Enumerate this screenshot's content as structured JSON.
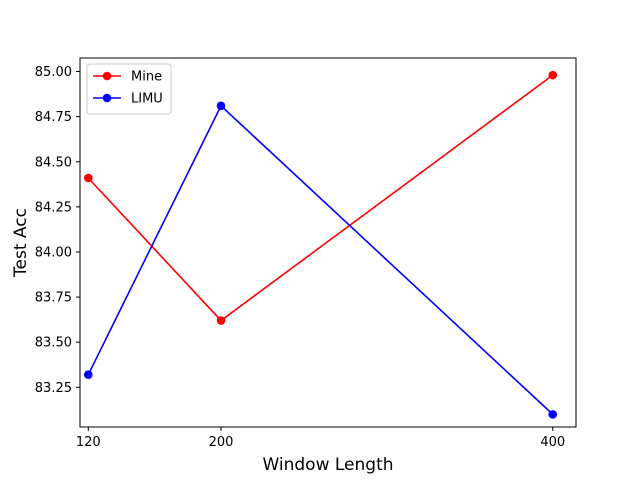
{
  "chart_data": {
    "type": "line",
    "title": "",
    "xlabel": "Window Length",
    "ylabel": "Test Acc",
    "x": [
      120,
      200,
      400
    ],
    "xlim": [
      115,
      414
    ],
    "ylim": [
      83.03,
      85.075
    ],
    "xticks": [
      120,
      200,
      400
    ],
    "xtick_labels": [
      "120",
      "200",
      "400"
    ],
    "yticks": [
      83.25,
      83.5,
      83.75,
      84.0,
      84.25,
      84.5,
      84.75,
      85.0
    ],
    "ytick_labels": [
      "83.25",
      "83.50",
      "83.75",
      "84.00",
      "84.25",
      "84.50",
      "84.75",
      "85.00"
    ],
    "grid": false,
    "legend_position": "top-left",
    "series": [
      {
        "name": "Mine",
        "color": "#ff0000",
        "marker": "circle",
        "values": [
          84.41,
          83.62,
          84.98
        ]
      },
      {
        "name": "LIMU",
        "color": "#0000ff",
        "marker": "circle",
        "values": [
          83.32,
          84.81,
          83.1
        ]
      }
    ]
  }
}
